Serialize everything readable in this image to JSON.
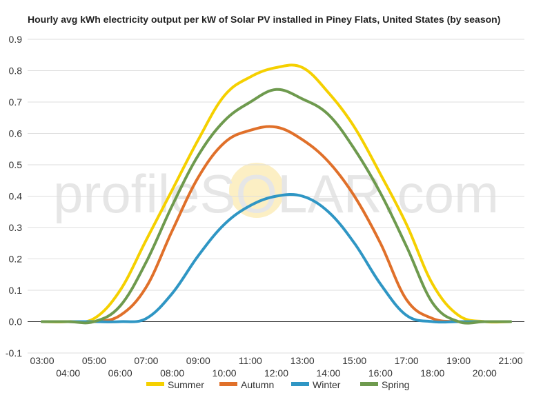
{
  "chart_data": {
    "type": "line",
    "title": "Hourly avg kWh electricity output per kW of Solar PV installed in Piney Flats, United States (by season)",
    "watermark": "profileSOLAR.com",
    "xlabel": "",
    "ylabel": "",
    "ylim": [
      -0.1,
      0.9
    ],
    "yticks": [
      "-0.1",
      "0.0",
      "0.1",
      "0.2",
      "0.3",
      "0.4",
      "0.5",
      "0.6",
      "0.7",
      "0.8",
      "0.9"
    ],
    "categories": [
      "03:00",
      "04:00",
      "05:00",
      "06:00",
      "07:00",
      "08:00",
      "09:00",
      "10:00",
      "11:00",
      "12:00",
      "13:00",
      "14:00",
      "15:00",
      "16:00",
      "17:00",
      "18:00",
      "19:00",
      "20:00",
      "21:00"
    ],
    "grid": true,
    "legend_position": "bottom",
    "series": [
      {
        "name": "Summer",
        "color": "#f5d000",
        "values": [
          0,
          0,
          0.01,
          0.1,
          0.26,
          0.42,
          0.58,
          0.72,
          0.78,
          0.81,
          0.81,
          0.73,
          0.62,
          0.47,
          0.31,
          0.12,
          0.02,
          0,
          0
        ]
      },
      {
        "name": "Autumn",
        "color": "#e0702a",
        "values": [
          0,
          0,
          0,
          0.02,
          0.11,
          0.29,
          0.46,
          0.57,
          0.61,
          0.62,
          0.58,
          0.51,
          0.4,
          0.25,
          0.07,
          0.01,
          0,
          0,
          0
        ]
      },
      {
        "name": "Winter",
        "color": "#2f96c4",
        "values": [
          0,
          0,
          0,
          0,
          0.01,
          0.09,
          0.21,
          0.31,
          0.37,
          0.4,
          0.4,
          0.35,
          0.25,
          0.12,
          0.02,
          0,
          0,
          0,
          0
        ]
      },
      {
        "name": "Spring",
        "color": "#6e9a4e",
        "values": [
          0,
          0,
          0,
          0.05,
          0.19,
          0.37,
          0.53,
          0.64,
          0.7,
          0.74,
          0.71,
          0.66,
          0.55,
          0.41,
          0.24,
          0.06,
          0,
          0,
          0
        ]
      }
    ]
  }
}
